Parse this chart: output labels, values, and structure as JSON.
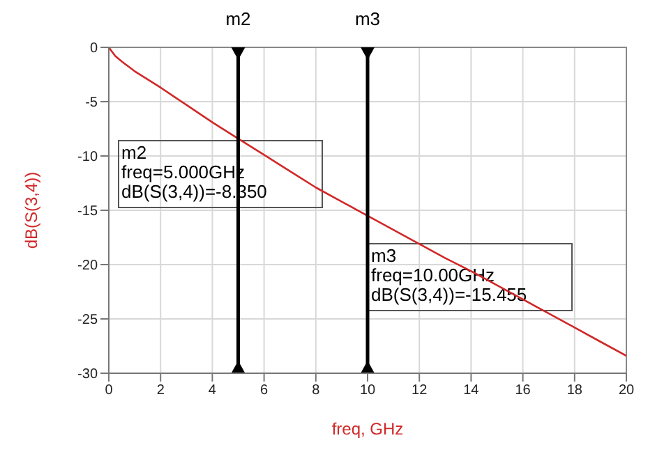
{
  "chart_data": {
    "type": "line",
    "xlabel": "freq, GHz",
    "ylabel": "dB(S(3,4))",
    "x": [
      0,
      0.25,
      0.5,
      1,
      2,
      3,
      4,
      5,
      6,
      7,
      8,
      9,
      10,
      11,
      12,
      13,
      14,
      15,
      16,
      17,
      18,
      19,
      20
    ],
    "series": [
      {
        "color": "#d02828",
        "values": [
          0,
          -0.8,
          -1.3,
          -2.2,
          -3.7,
          -5.3,
          -6.9,
          -8.4,
          -9.9,
          -11.4,
          -12.9,
          -14.2,
          -15.5,
          -16.8,
          -18.1,
          -19.4,
          -20.6,
          -21.9,
          -23.2,
          -24.5,
          -25.8,
          -27.1,
          -28.4
        ]
      }
    ],
    "xlim": [
      0,
      20
    ],
    "xticks": [
      0,
      2,
      4,
      6,
      8,
      10,
      12,
      14,
      16,
      18,
      20
    ],
    "ylim": [
      -30,
      0
    ],
    "yticks": [
      -30,
      -25,
      -20,
      -15,
      -10,
      -5,
      0
    ],
    "grid": true,
    "legend": false,
    "marker": "none",
    "line_style": "solid",
    "ref_lines": [
      {
        "axis": "x",
        "value": 5,
        "label": "m2"
      },
      {
        "axis": "x",
        "value": 10,
        "label": "m3"
      }
    ],
    "annotations": [
      "m2\nfreq=5.000GHz\ndB(S(3,4))=-8.350",
      "m3\nfreq=10.00GHz\ndB(S(3,4))=-15.455"
    ]
  }
}
